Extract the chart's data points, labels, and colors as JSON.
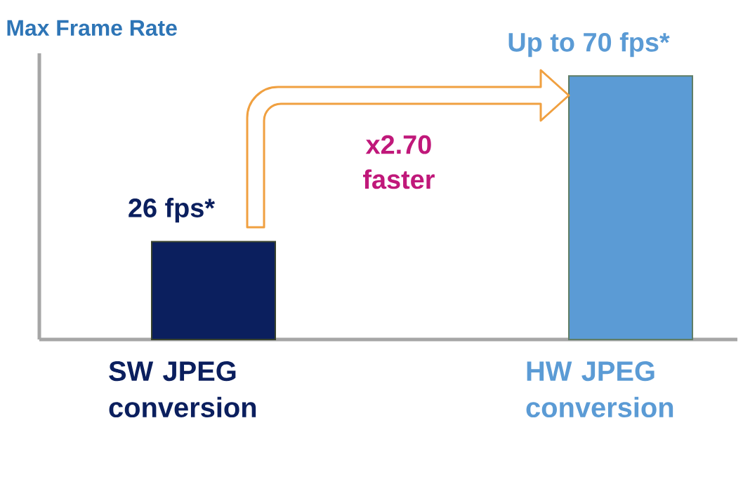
{
  "chart_data": {
    "type": "bar",
    "ylabel": "Max Frame Rate",
    "categories": [
      "SW JPEG conversion",
      "HW JPEG conversion"
    ],
    "values": [
      26,
      70
    ],
    "colors": [
      "#0b1f5e",
      "#5b9bd5"
    ],
    "value_labels": [
      "26 fps*",
      "Up to 70 fps*"
    ],
    "ylim": [
      0,
      76
    ],
    "annotations": [
      "x2.70 faster"
    ]
  }
}
